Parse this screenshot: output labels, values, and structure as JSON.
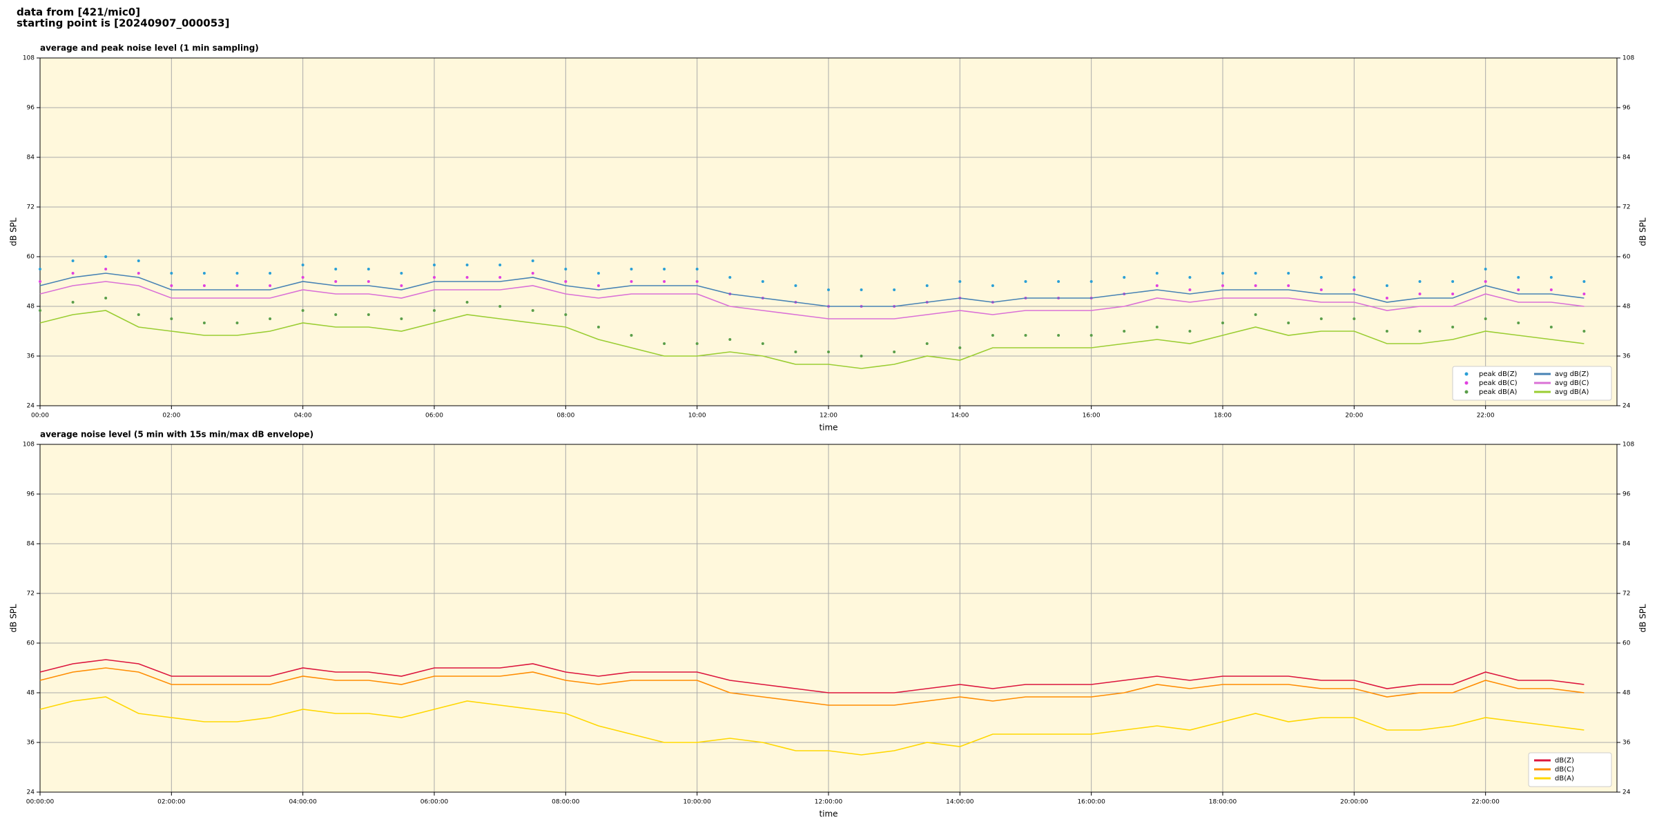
{
  "header": {
    "line1": "data from [421/mic0]",
    "line2": "starting point is [20240907_000053]"
  },
  "chart_data": [
    {
      "type": "line",
      "title": "average and peak noise level (1 min sampling)",
      "xlabel": "time",
      "ylabel": "dB SPL",
      "xlim": [
        0,
        1440
      ],
      "ylim": [
        24,
        108
      ],
      "yticks": [
        24,
        36,
        48,
        60,
        72,
        84,
        96,
        108
      ],
      "xticks": [
        {
          "value": 0,
          "label": "00:00"
        },
        {
          "value": 120,
          "label": "02:00"
        },
        {
          "value": 240,
          "label": "04:00"
        },
        {
          "value": 360,
          "label": "06:00"
        },
        {
          "value": 480,
          "label": "08:00"
        },
        {
          "value": 600,
          "label": "10:00"
        },
        {
          "value": 720,
          "label": "12:00"
        },
        {
          "value": 840,
          "label": "14:00"
        },
        {
          "value": 960,
          "label": "16:00"
        },
        {
          "value": 1080,
          "label": "18:00"
        },
        {
          "value": 1200,
          "label": "20:00"
        },
        {
          "value": 1320,
          "label": "22:00"
        }
      ],
      "grid": true,
      "legend": "lower right",
      "legend_columns": 2,
      "x": [
        0,
        30,
        60,
        90,
        120,
        150,
        180,
        210,
        240,
        270,
        300,
        330,
        360,
        390,
        420,
        450,
        480,
        510,
        540,
        570,
        600,
        630,
        660,
        690,
        720,
        750,
        780,
        810,
        840,
        870,
        900,
        930,
        960,
        990,
        1020,
        1050,
        1080,
        1110,
        1140,
        1170,
        1200,
        1230,
        1260,
        1290,
        1320,
        1350,
        1380,
        1410
      ],
      "series": [
        {
          "name": "peak dB(Z)",
          "kind": "scatter",
          "color": "#2a9fd6",
          "values": [
            57,
            59,
            60,
            59,
            56,
            56,
            56,
            56,
            58,
            57,
            57,
            56,
            58,
            58,
            58,
            59,
            57,
            56,
            57,
            57,
            57,
            55,
            54,
            53,
            52,
            52,
            52,
            53,
            54,
            53,
            54,
            54,
            54,
            55,
            56,
            55,
            56,
            56,
            56,
            55,
            55,
            53,
            54,
            54,
            57,
            55,
            55,
            54
          ]
        },
        {
          "name": "peak dB(C)",
          "kind": "scatter",
          "color": "#e040e0",
          "values": [
            54,
            56,
            57,
            56,
            53,
            53,
            53,
            53,
            55,
            54,
            54,
            53,
            55,
            55,
            55,
            56,
            54,
            53,
            54,
            54,
            54,
            51,
            50,
            49,
            48,
            48,
            48,
            49,
            50,
            49,
            50,
            50,
            50,
            51,
            53,
            52,
            53,
            53,
            53,
            52,
            52,
            50,
            51,
            51,
            54,
            52,
            52,
            51
          ]
        },
        {
          "name": "peak dB(A)",
          "kind": "scatter",
          "color": "#5a9e4a",
          "values": [
            47,
            49,
            50,
            46,
            45,
            44,
            44,
            45,
            47,
            46,
            46,
            45,
            47,
            49,
            48,
            47,
            46,
            43,
            41,
            39,
            39,
            40,
            39,
            37,
            37,
            36,
            37,
            39,
            38,
            41,
            41,
            41,
            41,
            42,
            43,
            42,
            44,
            46,
            44,
            45,
            45,
            42,
            42,
            43,
            45,
            44,
            43,
            42
          ]
        },
        {
          "name": "avg dB(Z)",
          "kind": "line",
          "color": "#4682b4",
          "values": [
            53,
            55,
            56,
            55,
            52,
            52,
            52,
            52,
            54,
            53,
            53,
            52,
            54,
            54,
            54,
            55,
            53,
            52,
            53,
            53,
            53,
            51,
            50,
            49,
            48,
            48,
            48,
            49,
            50,
            49,
            50,
            50,
            50,
            51,
            52,
            51,
            52,
            52,
            52,
            51,
            51,
            49,
            50,
            50,
            53,
            51,
            51,
            50
          ]
        },
        {
          "name": "avg dB(C)",
          "kind": "line",
          "color": "#da70d6",
          "values": [
            51,
            53,
            54,
            53,
            50,
            50,
            50,
            50,
            52,
            51,
            51,
            50,
            52,
            52,
            52,
            53,
            51,
            50,
            51,
            51,
            51,
            48,
            47,
            46,
            45,
            45,
            45,
            46,
            47,
            46,
            47,
            47,
            47,
            48,
            50,
            49,
            50,
            50,
            50,
            49,
            49,
            47,
            48,
            48,
            51,
            49,
            49,
            48
          ]
        },
        {
          "name": "avg dB(A)",
          "kind": "line",
          "color": "#9acd32",
          "values": [
            44,
            46,
            47,
            43,
            42,
            41,
            41,
            42,
            44,
            43,
            43,
            42,
            44,
            46,
            45,
            44,
            43,
            40,
            38,
            36,
            36,
            37,
            36,
            34,
            34,
            33,
            34,
            36,
            35,
            38,
            38,
            38,
            38,
            39,
            40,
            39,
            41,
            43,
            41,
            42,
            42,
            39,
            39,
            40,
            42,
            41,
            40,
            39
          ]
        }
      ]
    },
    {
      "type": "line",
      "title": "average noise level (5 min with 15s min/max dB envelope)",
      "xlabel": "time",
      "ylabel": "dB SPL",
      "xlim": [
        0,
        1440
      ],
      "ylim": [
        24,
        108
      ],
      "yticks": [
        24,
        36,
        48,
        60,
        72,
        84,
        96,
        108
      ],
      "xticks": [
        {
          "value": 0,
          "label": "00:00:00"
        },
        {
          "value": 120,
          "label": "02:00:00"
        },
        {
          "value": 240,
          "label": "04:00:00"
        },
        {
          "value": 360,
          "label": "06:00:00"
        },
        {
          "value": 480,
          "label": "08:00:00"
        },
        {
          "value": 600,
          "label": "10:00:00"
        },
        {
          "value": 720,
          "label": "12:00:00"
        },
        {
          "value": 840,
          "label": "14:00:00"
        },
        {
          "value": 960,
          "label": "16:00:00"
        },
        {
          "value": 1080,
          "label": "18:00:00"
        },
        {
          "value": 1200,
          "label": "20:00:00"
        },
        {
          "value": 1320,
          "label": "22:00:00"
        }
      ],
      "grid": true,
      "legend": "lower right",
      "legend_columns": 1,
      "x": [
        0,
        30,
        60,
        90,
        120,
        150,
        180,
        210,
        240,
        270,
        300,
        330,
        360,
        390,
        420,
        450,
        480,
        510,
        540,
        570,
        600,
        630,
        660,
        690,
        720,
        750,
        780,
        810,
        840,
        870,
        900,
        930,
        960,
        990,
        1020,
        1050,
        1080,
        1110,
        1140,
        1170,
        1200,
        1230,
        1260,
        1290,
        1320,
        1350,
        1380,
        1410
      ],
      "series": [
        {
          "name": "dB(Z)",
          "kind": "line",
          "color": "#dc143c",
          "values": [
            53,
            55,
            56,
            55,
            52,
            52,
            52,
            52,
            54,
            53,
            53,
            52,
            54,
            54,
            54,
            55,
            53,
            52,
            53,
            53,
            53,
            51,
            50,
            49,
            48,
            48,
            48,
            49,
            50,
            49,
            50,
            50,
            50,
            51,
            52,
            51,
            52,
            52,
            52,
            51,
            51,
            49,
            50,
            50,
            53,
            51,
            51,
            50
          ]
        },
        {
          "name": "dB(C)",
          "kind": "line",
          "color": "#ff8c00",
          "values": [
            51,
            53,
            54,
            53,
            50,
            50,
            50,
            50,
            52,
            51,
            51,
            50,
            52,
            52,
            52,
            53,
            51,
            50,
            51,
            51,
            51,
            48,
            47,
            46,
            45,
            45,
            45,
            46,
            47,
            46,
            47,
            47,
            47,
            48,
            50,
            49,
            50,
            50,
            50,
            49,
            49,
            47,
            48,
            48,
            51,
            49,
            49,
            48
          ]
        },
        {
          "name": "dB(A)",
          "kind": "line",
          "color": "#ffd700",
          "values": [
            44,
            46,
            47,
            43,
            42,
            41,
            41,
            42,
            44,
            43,
            43,
            42,
            44,
            46,
            45,
            44,
            43,
            40,
            38,
            36,
            36,
            37,
            36,
            34,
            34,
            33,
            34,
            36,
            35,
            38,
            38,
            38,
            38,
            39,
            40,
            39,
            41,
            43,
            41,
            42,
            42,
            39,
            39,
            40,
            42,
            41,
            40,
            39
          ]
        }
      ]
    }
  ]
}
